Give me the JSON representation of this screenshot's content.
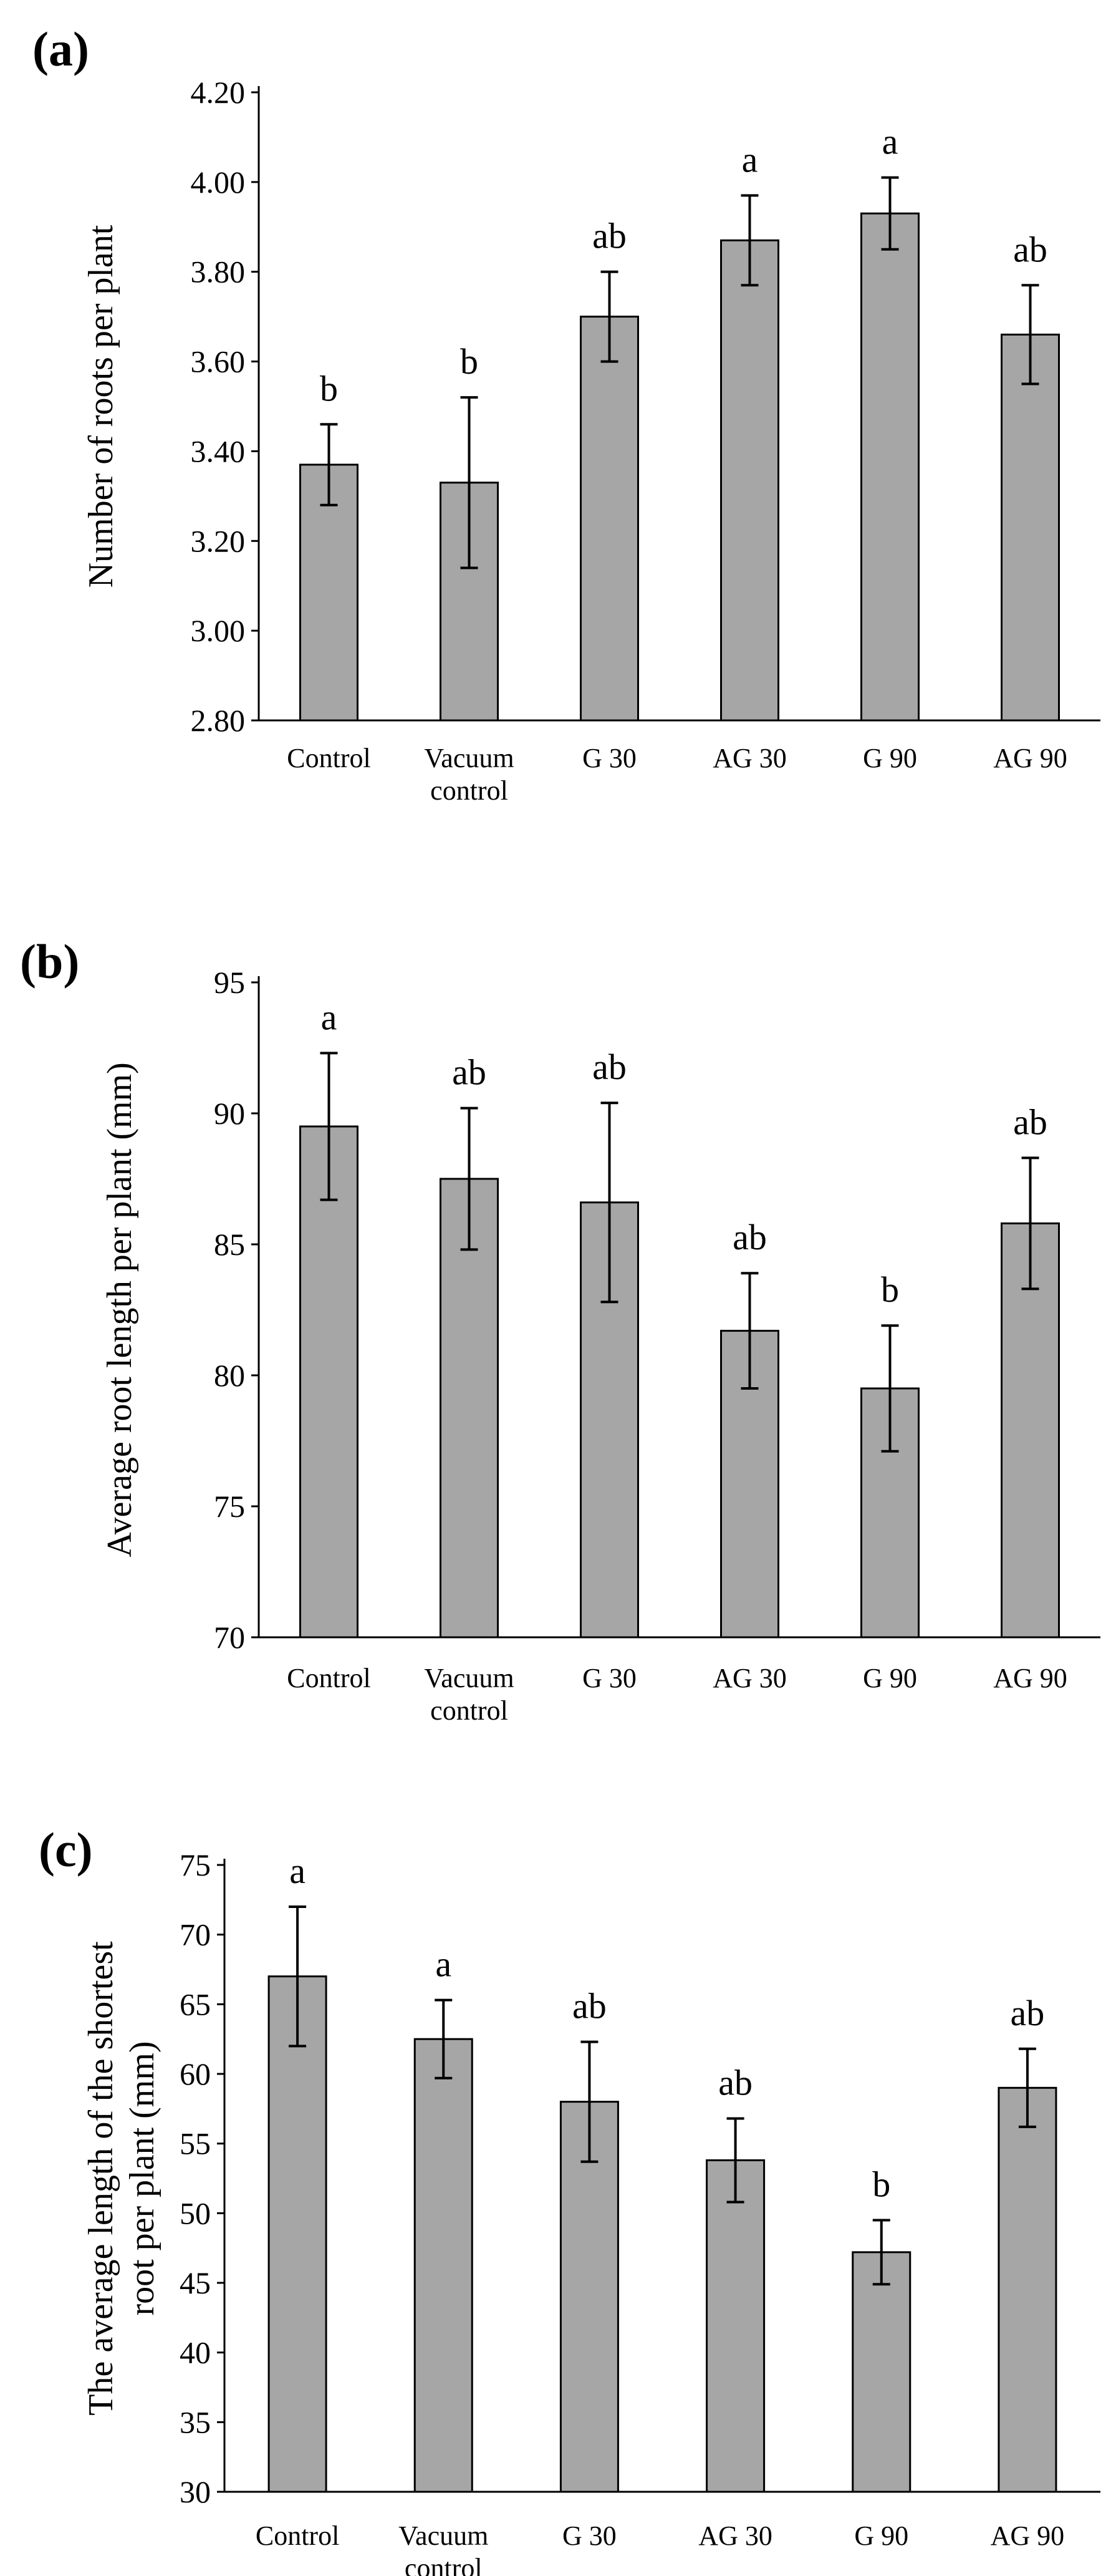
{
  "figure": {
    "chart_data": [
      {
        "type": "bar",
        "panel_label": "(a)",
        "title": "",
        "xlabel": "",
        "ylabel": "Number of roots per plant",
        "ylim": [
          2.8,
          4.2
        ],
        "yticks": [
          "2.80",
          "3.00",
          "3.20",
          "3.40",
          "3.60",
          "3.80",
          "4.00",
          "4.20"
        ],
        "ytick_values": [
          2.8,
          3.0,
          3.2,
          3.4,
          3.6,
          3.8,
          4.0,
          4.2
        ],
        "categories": [
          [
            "Control"
          ],
          [
            "Vacuum",
            "control"
          ],
          [
            "G 30"
          ],
          [
            "AG 30"
          ],
          [
            "G 90"
          ],
          [
            "AG 90"
          ]
        ],
        "values": [
          3.37,
          3.33,
          3.7,
          3.87,
          3.93,
          3.66
        ],
        "errors": [
          0.09,
          0.19,
          0.1,
          0.1,
          0.08,
          0.11
        ],
        "significance": [
          "b",
          "b",
          "ab",
          "a",
          "a",
          "ab"
        ],
        "bar_color": "#a6a6a6",
        "grid": false
      },
      {
        "type": "bar",
        "panel_label": "(b)",
        "title": "",
        "xlabel": "",
        "ylabel": "Average root length per plant (mm)",
        "ylim": [
          70,
          95
        ],
        "yticks": [
          "70",
          "75",
          "80",
          "85",
          "90",
          "95"
        ],
        "ytick_values": [
          70,
          75,
          80,
          85,
          90,
          95
        ],
        "categories": [
          [
            "Control"
          ],
          [
            "Vacuum",
            "control"
          ],
          [
            "G 30"
          ],
          [
            "AG 30"
          ],
          [
            "G 90"
          ],
          [
            "AG 90"
          ]
        ],
        "values": [
          89.5,
          87.5,
          86.6,
          81.7,
          79.5,
          85.8
        ],
        "errors": [
          2.8,
          2.7,
          3.8,
          2.2,
          2.4,
          2.5
        ],
        "significance": [
          "a",
          "ab",
          "ab",
          "ab",
          "b",
          "ab"
        ],
        "bar_color": "#a6a6a6",
        "grid": false
      },
      {
        "type": "bar",
        "panel_label": "(c)",
        "title": "",
        "xlabel": "",
        "ylabel": [
          "The average length of the shortest",
          "root per plant (mm)"
        ],
        "ylim": [
          30,
          75
        ],
        "yticks": [
          "30",
          "35",
          "40",
          "45",
          "50",
          "55",
          "60",
          "65",
          "70",
          "75"
        ],
        "ytick_values": [
          30,
          35,
          40,
          45,
          50,
          55,
          60,
          65,
          70,
          75
        ],
        "categories": [
          [
            "Control"
          ],
          [
            "Vacuum",
            "control"
          ],
          [
            "G 30"
          ],
          [
            "AG 30"
          ],
          [
            "G 90"
          ],
          [
            "AG 90"
          ]
        ],
        "values": [
          67.0,
          62.5,
          58.0,
          53.8,
          47.2,
          59.0
        ],
        "errors": [
          5.0,
          2.8,
          4.3,
          3.0,
          2.3,
          2.8
        ],
        "significance": [
          "a",
          "a",
          "ab",
          "ab",
          "b",
          "ab"
        ],
        "bar_color": "#a6a6a6",
        "grid": false
      }
    ]
  }
}
